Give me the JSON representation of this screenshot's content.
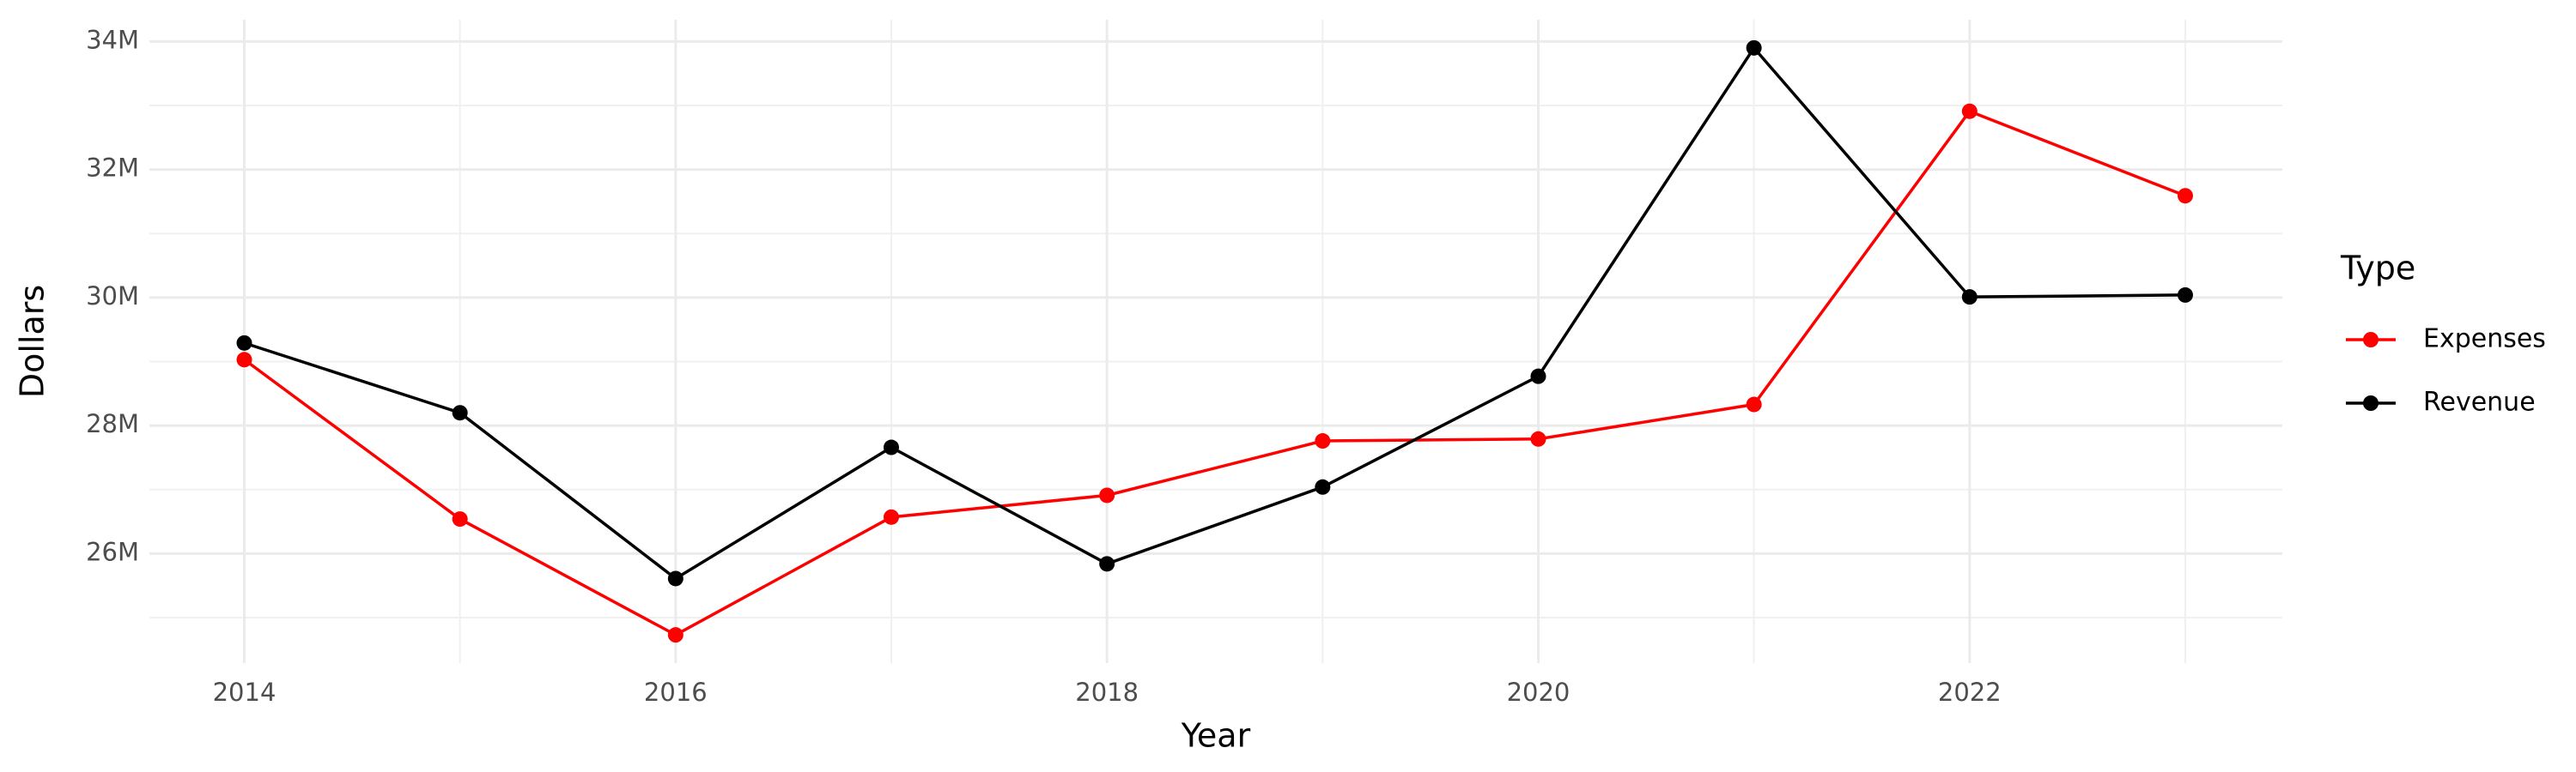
{
  "chart_data": {
    "type": "line",
    "x_label": "Year",
    "y_label": "Dollars",
    "legend_title": "Type",
    "x": [
      2014,
      2015,
      2016,
      2017,
      2018,
      2019,
      2020,
      2021,
      2022,
      2023
    ],
    "series": [
      {
        "name": "Expenses",
        "color": "#ff0000",
        "values": [
          29030000,
          26540000,
          24730000,
          26570000,
          26910000,
          27760000,
          27790000,
          28330000,
          32910000,
          31590000
        ]
      },
      {
        "name": "Revenue",
        "color": "#000000",
        "values": [
          29290000,
          28200000,
          25610000,
          27660000,
          25840000,
          27040000,
          28770000,
          33900000,
          30010000,
          30040000
        ]
      }
    ],
    "xlim": [
      2013.56,
      2023.45
    ],
    "xticks": [
      2014,
      2016,
      2018,
      2020,
      2022
    ],
    "ylim": [
      24290000,
      34340000
    ],
    "yticks": [
      {
        "value": 26000000,
        "label": "26M"
      },
      {
        "value": 28000000,
        "label": "28M"
      },
      {
        "value": 30000000,
        "label": "30M"
      },
      {
        "value": 32000000,
        "label": "32M"
      },
      {
        "value": 34000000,
        "label": "34M"
      }
    ],
    "grid": true,
    "legend": "right"
  }
}
